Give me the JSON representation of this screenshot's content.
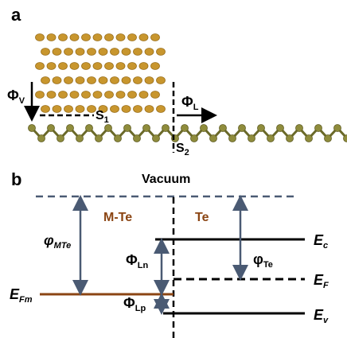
{
  "panel_a": {
    "label": "a",
    "phi_v": {
      "main": "Φ",
      "sub": "V"
    },
    "phi_l": {
      "main": "Φ",
      "sub": "L"
    },
    "s1": {
      "main": "S",
      "sub": "1"
    },
    "s2": {
      "main": "S",
      "sub": "2"
    }
  },
  "panel_b": {
    "label": "b",
    "vacuum": "Vacuum",
    "m_te": "M-Te",
    "te": "Te",
    "phi_mte": {
      "main": "φ",
      "sub": "MTe"
    },
    "phi_ln": {
      "main": "Φ",
      "sub": "Ln"
    },
    "phi_lp": {
      "main": "Φ",
      "sub": "Lp"
    },
    "phi_te": {
      "main": "φ",
      "sub": "Te"
    },
    "e_fm": {
      "main": "E",
      "sub": "Fm"
    },
    "e_c": {
      "main": "E",
      "sub": "c"
    },
    "e_f": {
      "main": "E",
      "sub": "F"
    },
    "e_v": {
      "main": "E",
      "sub": "v"
    }
  }
}
